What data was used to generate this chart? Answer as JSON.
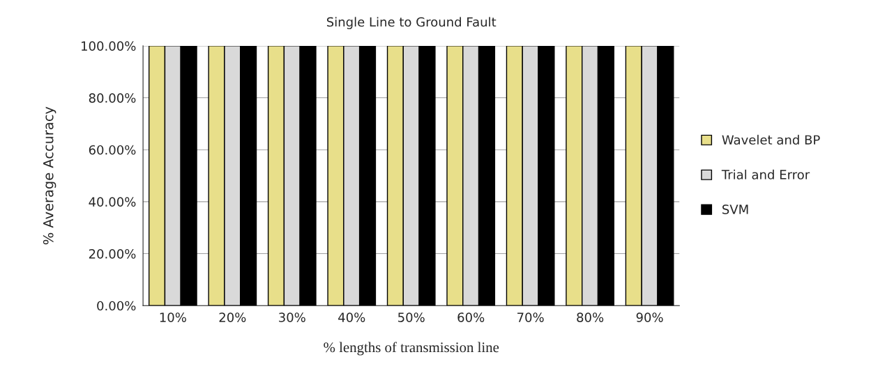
{
  "chart_data": {
    "type": "bar",
    "title": "Single Line to Ground Fault",
    "xlabel": "% lengths of transmission line",
    "ylabel": "% Average Accuracy",
    "categories": [
      "10%",
      "20%",
      "30%",
      "40%",
      "50%",
      "60%",
      "70%",
      "80%",
      "90%"
    ],
    "series": [
      {
        "name": "Wavelet and BP",
        "color": "#e8df8a",
        "values": [
          100,
          100,
          100,
          100,
          100,
          100,
          100,
          100,
          100
        ]
      },
      {
        "name": "Trial and Error",
        "color": "#d9d9d9",
        "values": [
          100,
          100,
          100,
          100,
          100,
          100,
          100,
          100,
          100
        ]
      },
      {
        "name": "SVM",
        "color": "#000000",
        "values": [
          100,
          100,
          100,
          100,
          100,
          100,
          100,
          100,
          100
        ]
      }
    ],
    "ylim": [
      0,
      100
    ],
    "yticks": [
      {
        "value": 0,
        "label": "0.00%"
      },
      {
        "value": 20,
        "label": "20.00%"
      },
      {
        "value": 40,
        "label": "40.00%"
      },
      {
        "value": 60,
        "label": "60.00%"
      },
      {
        "value": 80,
        "label": "80.00%"
      },
      {
        "value": 100,
        "label": "100.00%"
      }
    ],
    "grid": "y",
    "legend": "right"
  }
}
